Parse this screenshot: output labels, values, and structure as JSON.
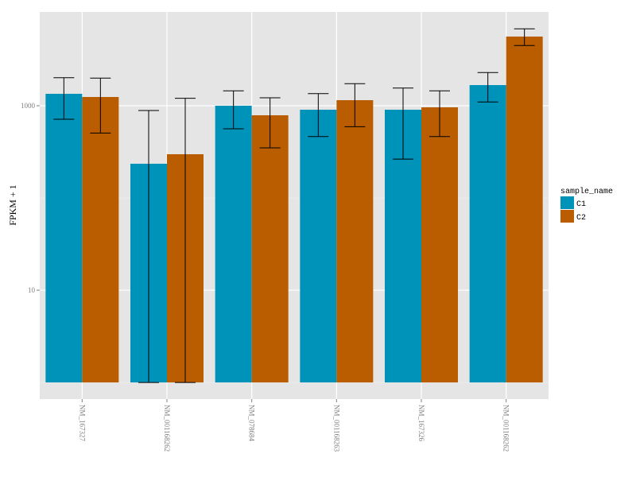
{
  "chart_data": {
    "type": "bar",
    "title": "",
    "xlabel": "",
    "ylabel": "FPKM + 1",
    "yscale": "log10",
    "ylim": [
      0.66,
      10400
    ],
    "y_ticks": [
      10,
      1000
    ],
    "y_tick_labels": [
      "10",
      "1000"
    ],
    "grid": true,
    "categories": [
      "NM_167327",
      "NM_001168262",
      "NM_078684",
      "NM_001168263",
      "NM_167326",
      "NM_001168262"
    ],
    "legend": {
      "title": "sample_name",
      "position": "right"
    },
    "series": [
      {
        "name": "C1",
        "color": "#0093BA",
        "values": [
          1347,
          235,
          1000,
          905,
          905,
          1675
        ],
        "err_low": [
          714,
          1,
          562,
          464,
          264,
          1098
        ],
        "err_high": [
          2015,
          888,
          1449,
          1355,
          1556,
          2288
        ]
      },
      {
        "name": "C2",
        "color": "#BA5C00",
        "values": [
          1244,
          298,
          788,
          1149,
          961,
          5623
        ],
        "err_low": [
          506,
          1,
          349,
          593,
          464,
          4497
        ],
        "err_high": [
          1991,
          1203,
          1219,
          1733,
          1449,
          6817
        ]
      }
    ]
  }
}
